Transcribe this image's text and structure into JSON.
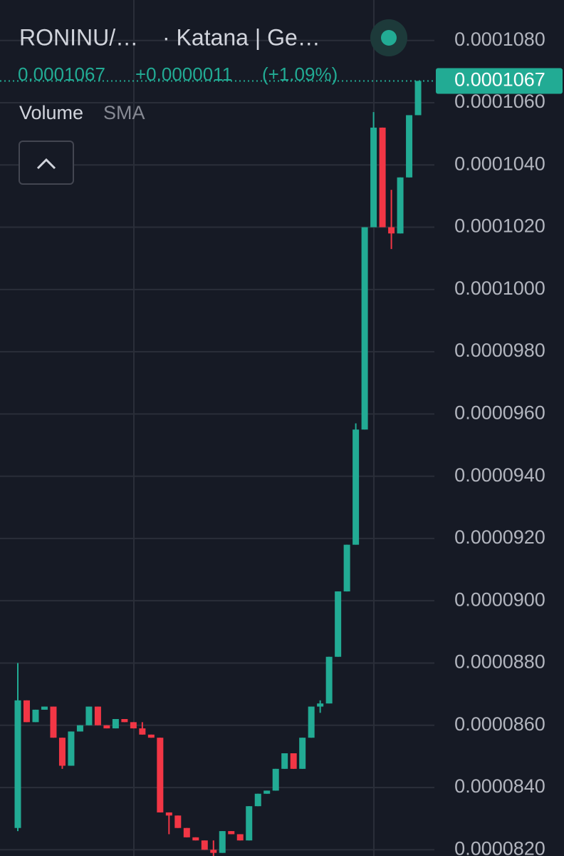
{
  "chart_data": {
    "type": "candlestick",
    "symbol": "RONINU/…",
    "exchange": "· Katana | Ge…",
    "last_price": 0.0001067,
    "change": "+0.0000011",
    "change_pct": "(+1.09%)",
    "indicator": "Volume",
    "indicator_setting": "SMA",
    "up_color": "#22ab94",
    "down_color": "#f23645",
    "grid": true,
    "ylim": [
      8.18e-05,
      0.0001093
    ],
    "yticks": [
      {
        "value": 0.000108,
        "label": "0.0001080"
      },
      {
        "value": 0.000106,
        "label": "0.0001060"
      },
      {
        "value": 0.000104,
        "label": "0.0001040"
      },
      {
        "value": 0.000102,
        "label": "0.0001020"
      },
      {
        "value": 0.0001,
        "label": "0.0001000"
      },
      {
        "value": 9.8e-05,
        "label": "0.0000980"
      },
      {
        "value": 9.6e-05,
        "label": "0.0000960"
      },
      {
        "value": 9.4e-05,
        "label": "0.0000940"
      },
      {
        "value": 9.2e-05,
        "label": "0.0000920"
      },
      {
        "value": 9e-05,
        "label": "0.0000900"
      },
      {
        "value": 8.8e-05,
        "label": "0.0000880"
      },
      {
        "value": 8.6e-05,
        "label": "0.0000860"
      },
      {
        "value": 8.4e-05,
        "label": "0.0000840"
      },
      {
        "value": 8.2e-05,
        "label": "0.0000820"
      }
    ],
    "open": [
      8.27e-05,
      8.68e-05,
      8.61e-05,
      8.65e-05,
      8.66e-05,
      8.56e-05,
      8.47e-05,
      8.58e-05,
      8.6e-05,
      8.66e-05,
      8.6e-05,
      8.59e-05,
      8.62e-05,
      8.61e-05,
      8.59e-05,
      8.57e-05,
      8.56e-05,
      8.32e-05,
      8.31e-05,
      8.27e-05,
      8.24e-05,
      8.23e-05,
      8.2e-05,
      8.19e-05,
      8.26e-05,
      8.25e-05,
      8.23e-05,
      8.34e-05,
      8.38e-05,
      8.39e-05,
      8.46e-05,
      8.51e-05,
      8.46e-05,
      8.56e-05,
      8.66e-05,
      8.67e-05,
      8.82e-05,
      9.03e-05,
      9.18e-05,
      9.55e-05,
      0.000102,
      0.0001052,
      0.000102,
      0.0001018,
      0.0001036,
      0.0001056
    ],
    "high": [
      8.8e-05,
      8.68e-05,
      8.65e-05,
      8.66e-05,
      8.66e-05,
      8.56e-05,
      8.58e-05,
      8.6e-05,
      8.66e-05,
      8.66e-05,
      8.6e-05,
      8.62e-05,
      8.62e-05,
      8.61e-05,
      8.61e-05,
      8.57e-05,
      8.56e-05,
      8.32e-05,
      8.31e-05,
      8.27e-05,
      8.24e-05,
      8.23e-05,
      8.23e-05,
      8.26e-05,
      8.26e-05,
      8.25e-05,
      8.34e-05,
      8.38e-05,
      8.39e-05,
      8.46e-05,
      8.51e-05,
      8.51e-05,
      8.56e-05,
      8.66e-05,
      8.68e-05,
      8.82e-05,
      9.03e-05,
      9.18e-05,
      9.57e-05,
      0.000102,
      0.0001057,
      0.0001052,
      0.0001032,
      0.0001036,
      0.0001056,
      0.0001067
    ],
    "low": [
      8.26e-05,
      8.61e-05,
      8.61e-05,
      8.65e-05,
      8.56e-05,
      8.46e-05,
      8.47e-05,
      8.58e-05,
      8.6e-05,
      8.6e-05,
      8.59e-05,
      8.59e-05,
      8.61e-05,
      8.59e-05,
      8.57e-05,
      8.56e-05,
      8.32e-05,
      8.25e-05,
      8.27e-05,
      8.24e-05,
      8.23e-05,
      8.2e-05,
      8.18e-05,
      8.19e-05,
      8.25e-05,
      8.23e-05,
      8.23e-05,
      8.34e-05,
      8.38e-05,
      8.39e-05,
      8.46e-05,
      8.46e-05,
      8.46e-05,
      8.56e-05,
      8.64e-05,
      8.67e-05,
      8.82e-05,
      9.03e-05,
      9.18e-05,
      9.55e-05,
      0.000102,
      0.000102,
      0.0001013,
      0.0001018,
      0.0001036,
      0.0001056
    ],
    "close": [
      8.68e-05,
      8.61e-05,
      8.65e-05,
      8.66e-05,
      8.56e-05,
      8.47e-05,
      8.58e-05,
      8.6e-05,
      8.66e-05,
      8.6e-05,
      8.59e-05,
      8.62e-05,
      8.61e-05,
      8.59e-05,
      8.57e-05,
      8.56e-05,
      8.32e-05,
      8.31e-05,
      8.27e-05,
      8.24e-05,
      8.23e-05,
      8.2e-05,
      8.19e-05,
      8.26e-05,
      8.25e-05,
      8.23e-05,
      8.34e-05,
      8.38e-05,
      8.39e-05,
      8.46e-05,
      8.51e-05,
      8.46e-05,
      8.56e-05,
      8.66e-05,
      8.67e-05,
      8.82e-05,
      9.03e-05,
      9.18e-05,
      9.55e-05,
      0.000102,
      0.0001052,
      0.000102,
      0.0001018,
      0.0001036,
      0.0001056,
      0.0001067
    ]
  }
}
